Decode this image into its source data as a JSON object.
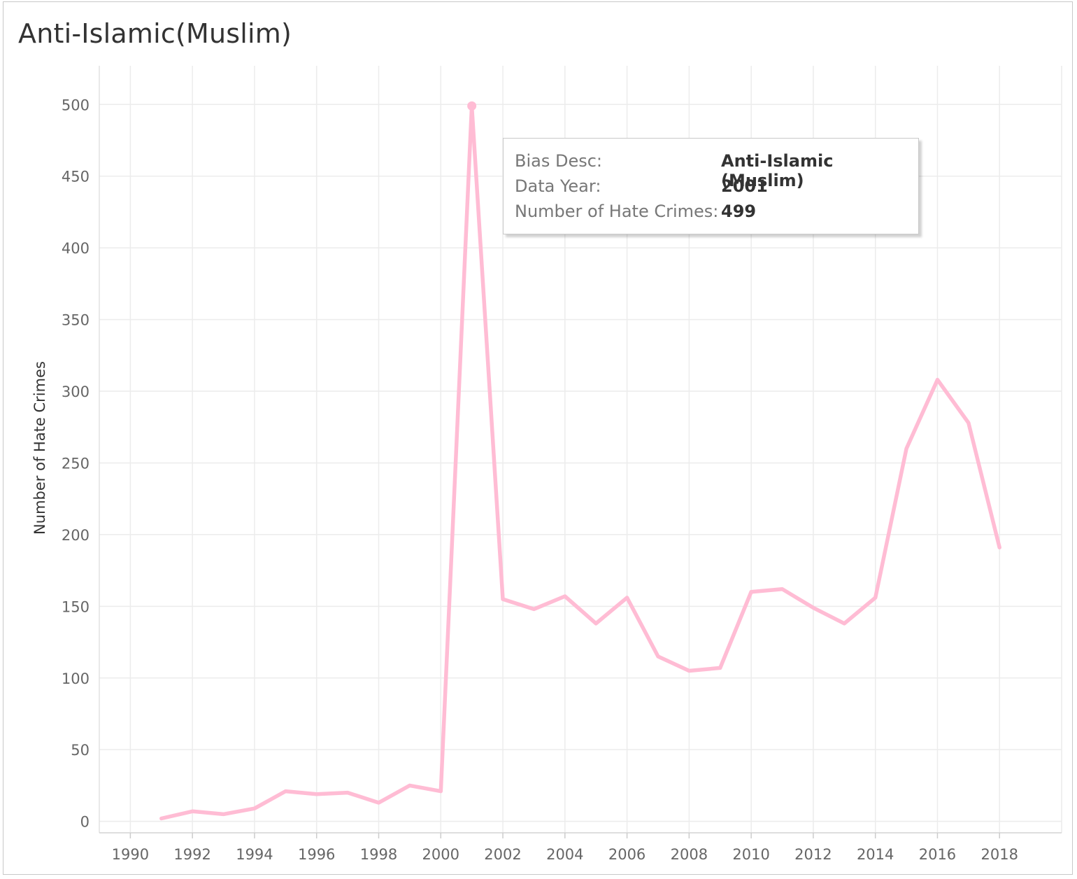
{
  "chart_data": {
    "type": "line",
    "title": "Anti-Islamic(Muslim)",
    "xlabel": "",
    "ylabel": "Number of Hate Crimes",
    "xlim": [
      1989,
      2020
    ],
    "ylim": [
      -8,
      527
    ],
    "x_ticks": [
      1990,
      1992,
      1994,
      1996,
      1998,
      2000,
      2002,
      2004,
      2006,
      2008,
      2010,
      2012,
      2014,
      2016,
      2018
    ],
    "y_ticks": [
      0,
      50,
      100,
      150,
      200,
      250,
      300,
      350,
      400,
      450,
      500
    ],
    "grid": true,
    "line_color": "#ffbcd4",
    "x": [
      1991,
      1992,
      1993,
      1994,
      1995,
      1996,
      1997,
      1998,
      1999,
      2000,
      2001,
      2002,
      2003,
      2004,
      2005,
      2006,
      2007,
      2008,
      2009,
      2010,
      2011,
      2012,
      2013,
      2014,
      2015,
      2016,
      2017,
      2018
    ],
    "values": [
      2,
      7,
      5,
      9,
      21,
      19,
      20,
      13,
      25,
      21,
      499,
      155,
      148,
      157,
      138,
      156,
      115,
      105,
      107,
      160,
      162,
      149,
      138,
      156,
      260,
      308,
      278,
      191
    ]
  },
  "tooltip": {
    "rows": [
      {
        "label": "Bias Desc:",
        "value": "Anti-Islamic (Muslim)"
      },
      {
        "label": "Data Year:",
        "value": "2001"
      },
      {
        "label": "Number of Hate Crimes:",
        "value": "499"
      }
    ],
    "highlight_year": 2001
  }
}
